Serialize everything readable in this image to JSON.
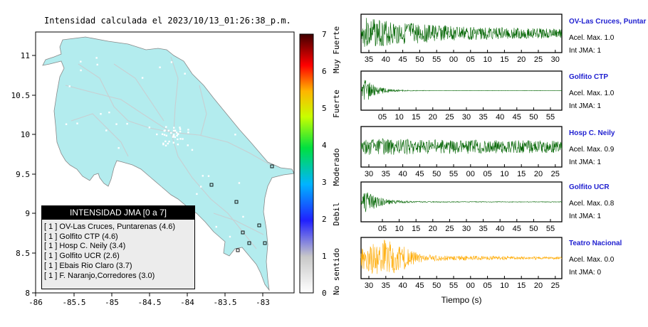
{
  "map": {
    "title": "Intensidad calculada el 2023/10/13_01:26:38_p.m.",
    "x_ticks": [
      "-86",
      "-85.5",
      "-85",
      "-84.5",
      "-84",
      "-83.5",
      "-83"
    ],
    "y_ticks": [
      "11",
      "10.5",
      "10",
      "9.5",
      "9",
      "8.5",
      "8"
    ],
    "land_color": "#b3ecee",
    "legend": {
      "header": "INTENSIDAD JMA [0 a 7]",
      "items": [
        "[ 1 ]  OV-Las Cruces, Puntarenas (4.6)",
        "[ 1 ]  Golfito CTP (4.6)",
        "[ 1 ]  Hosp C. Neily (3.4)",
        "[ 1 ]  Golfito UCR (2.6)",
        "[ 1 ]  Ebais Rio Claro (3.7)",
        "[ 1 ]  F. Naranjo,Corredores (3.0)"
      ]
    }
  },
  "colorbar": {
    "ticks": [
      "0",
      "1",
      "2",
      "3",
      "4",
      "5",
      "6",
      "7"
    ],
    "labels": [
      "No sentido",
      "Debil",
      "Moderado",
      "Fuerte",
      "Muy Fuerte"
    ]
  },
  "seismograms": [
    {
      "name": "OV-Las Cruces, Puntar",
      "acel": "Acel. Max. 1.0",
      "jma": "Int JMA: 1",
      "color": "#006400",
      "ticks": [
        "35",
        "40",
        "45",
        "50",
        "55",
        "00",
        "05",
        "10",
        "15",
        "20",
        "25",
        "30"
      ]
    },
    {
      "name": "Golfito CTP",
      "acel": "Acel. Max. 1.0",
      "jma": "Int JMA: 1",
      "color": "#006400",
      "ticks": [
        "05",
        "10",
        "15",
        "20",
        "25",
        "30",
        "35",
        "40",
        "45",
        "50",
        "55"
      ]
    },
    {
      "name": "Hosp C. Neily",
      "acel": "Acel. Max. 0.9",
      "jma": "Int JMA: 1",
      "color": "#006400",
      "ticks": [
        "30",
        "35",
        "40",
        "45",
        "50",
        "55",
        "00",
        "05",
        "10",
        "15",
        "20",
        "25"
      ]
    },
    {
      "name": "Golfito UCR",
      "acel": "Acel. Max. 0.8",
      "jma": "Int JMA: 1",
      "color": "#006400",
      "ticks": [
        "05",
        "10",
        "15",
        "20",
        "25",
        "30",
        "35",
        "40",
        "45",
        "50",
        "55"
      ]
    },
    {
      "name": "Teatro Nacional",
      "acel": "Acel. Max. 0.0",
      "jma": "Int JMA: 0",
      "color": "#ffaa00",
      "ticks": [
        "30",
        "35",
        "40",
        "45",
        "50",
        "55",
        "00",
        "05",
        "10",
        "15",
        "20",
        "25"
      ]
    }
  ],
  "xlabel": "Tiempo (s)"
}
